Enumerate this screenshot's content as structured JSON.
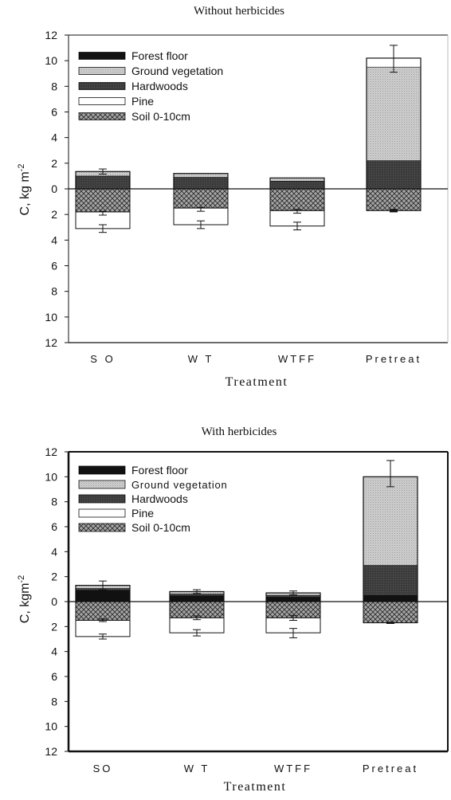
{
  "chart_data": [
    {
      "type": "bar",
      "title": "Without herbicides",
      "xlabel": "Treatment",
      "ylabel": "C, kg m-2",
      "ylim": [
        -12,
        12
      ],
      "yticks": [
        12,
        10,
        8,
        6,
        4,
        2,
        0,
        2,
        4,
        6,
        8,
        10,
        12
      ],
      "categories": [
        "S O",
        "W T",
        "WTFF",
        "Pretreat"
      ],
      "legend_position": "top-left",
      "series": [
        {
          "name": "Forest floor",
          "values": [
            0.0,
            0.0,
            0.0,
            0.0
          ],
          "color": "#111111"
        },
        {
          "name": "Ground vegetation",
          "values": [
            0.35,
            0.3,
            0.25,
            7.3
          ],
          "color": "#c9c9c9"
        },
        {
          "name": "Hardwoods",
          "values": [
            1.0,
            0.9,
            0.6,
            2.2
          ],
          "color": "#3a3a3a"
        },
        {
          "name": "Pine",
          "values": [
            -1.3,
            -1.3,
            -1.2,
            0.0
          ],
          "color": "#ffffff"
        },
        {
          "name": "Soil 0-10cm",
          "values": [
            -1.8,
            -1.5,
            -1.7,
            -1.7
          ],
          "color": "#a0a0a0"
        }
      ],
      "above_totals": [
        1.35,
        1.2,
        0.85,
        10.2
      ],
      "above_err_top": [
        1.55,
        1.2,
        0.85,
        11.2
      ],
      "above_err_bottom": [
        1.15,
        1.2,
        0.85,
        9.1
      ],
      "below_totals": [
        -3.1,
        -2.8,
        -2.9,
        -1.7
      ],
      "below_err_low": [
        -3.4,
        -3.1,
        -3.2,
        -1.8
      ],
      "below_err_high": [
        -2.8,
        -2.5,
        -2.6,
        -1.6
      ],
      "soil_err": [
        [
          -2.05,
          -1.75
        ],
        [
          -1.75,
          -1.45
        ],
        [
          -1.9,
          -1.6
        ],
        [
          -1.75,
          -1.65
        ]
      ]
    },
    {
      "type": "bar",
      "title": "With herbicides",
      "xlabel": "Treatment",
      "ylabel": "C, kgm-2",
      "ylim": [
        -12,
        12
      ],
      "yticks": [
        12,
        10,
        8,
        6,
        4,
        2,
        0,
        2,
        4,
        6,
        8,
        10,
        12
      ],
      "categories": [
        "SO",
        "W T",
        "WTFF",
        "Pretreat"
      ],
      "legend_position": "top-left",
      "series": [
        {
          "name": "Forest floor",
          "values": [
            0.9,
            0.45,
            0.35,
            0.5
          ],
          "color": "#111111"
        },
        {
          "name": "Ground vegetation",
          "values": [
            0.25,
            0.2,
            0.2,
            7.1
          ],
          "color": "#c9c9c9"
        },
        {
          "name": "Hardwoods",
          "values": [
            0.15,
            0.15,
            0.15,
            2.4
          ],
          "color": "#3a3a3a"
        },
        {
          "name": "Pine",
          "values": [
            -1.3,
            -1.2,
            -1.2,
            0.0
          ],
          "color": "#ffffff"
        },
        {
          "name": "Soil 0-10cm",
          "values": [
            -1.5,
            -1.3,
            -1.3,
            -1.7
          ],
          "color": "#a0a0a0"
        }
      ],
      "above_totals": [
        1.3,
        0.8,
        0.7,
        10.0
      ],
      "above_err_top": [
        1.65,
        0.95,
        0.85,
        11.3
      ],
      "above_err_bottom": [
        0.95,
        0.65,
        0.55,
        9.2
      ],
      "below_totals": [
        -2.8,
        -2.5,
        -2.5,
        -1.7
      ],
      "below_err_low": [
        -3.0,
        -2.75,
        -2.9,
        -1.75
      ],
      "below_err_high": [
        -2.6,
        -2.25,
        -2.15,
        -1.65
      ],
      "soil_err": [
        [
          -1.6,
          -1.4
        ],
        [
          -1.45,
          -1.15
        ],
        [
          -1.5,
          -1.1
        ],
        [
          -1.75,
          -1.65
        ]
      ]
    }
  ]
}
